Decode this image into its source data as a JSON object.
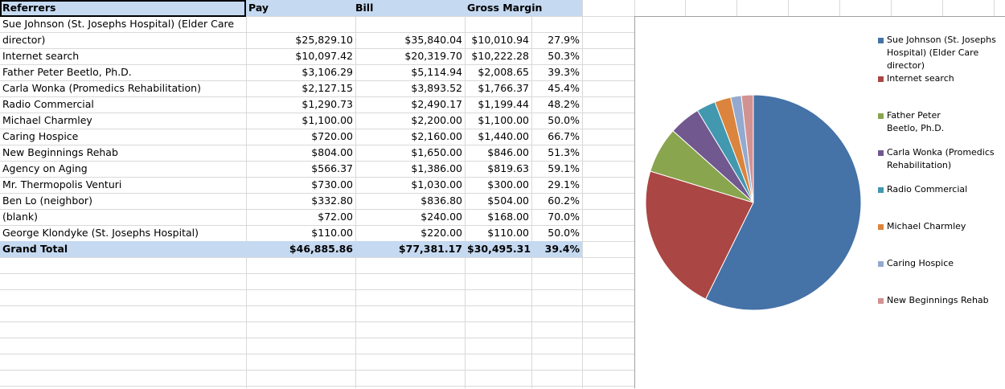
{
  "header": {
    "referrers": "Referrers",
    "pay": "Pay",
    "bill": "Bill",
    "gross_margin": "Gross Margin"
  },
  "rows": [
    {
      "name_line1": "Sue Johnson (St. Josephs Hospital) (Elder Care",
      "name": "director)",
      "pay": "$25,829.10",
      "bill": "$35,840.04",
      "gm": "$10,010.94",
      "pct": "27.9%"
    },
    {
      "name": "Internet search",
      "pay": "$10,097.42",
      "bill": "$20,319.70",
      "gm": "$10,222.28",
      "pct": "50.3%"
    },
    {
      "name": "Father Peter Beetlo, Ph.D.",
      "pay": "$3,106.29",
      "bill": "$5,114.94",
      "gm": "$2,008.65",
      "pct": "39.3%"
    },
    {
      "name": "Carla Wonka (Promedics Rehabilitation)",
      "pay": "$2,127.15",
      "bill": "$3,893.52",
      "gm": "$1,766.37",
      "pct": "45.4%"
    },
    {
      "name": "Radio Commercial",
      "pay": "$1,290.73",
      "bill": "$2,490.17",
      "gm": "$1,199.44",
      "pct": "48.2%"
    },
    {
      "name": "Michael Charmley",
      "pay": "$1,100.00",
      "bill": "$2,200.00",
      "gm": "$1,100.00",
      "pct": "50.0%"
    },
    {
      "name": "Caring Hospice",
      "pay": "$720.00",
      "bill": "$2,160.00",
      "gm": "$1,440.00",
      "pct": "66.7%"
    },
    {
      "name": "New Beginnings Rehab",
      "pay": "$804.00",
      "bill": "$1,650.00",
      "gm": "$846.00",
      "pct": "51.3%"
    },
    {
      "name": "Agency on Aging",
      "pay": "$566.37",
      "bill": "$1,386.00",
      "gm": "$819.63",
      "pct": "59.1%"
    },
    {
      "name": "Mr. Thermopolis Venturi",
      "pay": "$730.00",
      "bill": "$1,030.00",
      "gm": "$300.00",
      "pct": "29.1%"
    },
    {
      "name": "Ben Lo (neighbor)",
      "pay": "$332.80",
      "bill": "$836.80",
      "gm": "$504.00",
      "pct": "60.2%"
    },
    {
      "name": "(blank)",
      "pay": "$72.00",
      "bill": "$240.00",
      "gm": "$168.00",
      "pct": "70.0%"
    },
    {
      "name": "George Klondyke (St. Josephs Hospital)",
      "pay": "$110.00",
      "bill": "$220.00",
      "gm": "$110.00",
      "pct": "50.0%"
    }
  ],
  "total": {
    "name": "Grand Total",
    "pay": "$46,885.86",
    "bill": "$77,381.17",
    "gm": "$30,495.31",
    "pct": "39.4%"
  },
  "colors": {
    "header_fill": "#c5d9f1",
    "gridline": "#d9d9d9"
  },
  "chart_data": {
    "type": "pie",
    "series_column": "Pay",
    "slices": [
      {
        "label": "Sue Johnson (St. Josephs Hospital) (Elder Care director)",
        "legend_lines": [
          "Sue Johnson (St. Josephs",
          "Hospital) (Elder Care",
          "director)"
        ],
        "value": 25829.1,
        "color": "#4572a7"
      },
      {
        "label": "Internet search",
        "legend_lines": [
          "Internet search"
        ],
        "value": 10097.42,
        "color": "#aa4643"
      },
      {
        "label": "Father Peter Beetlo, Ph.D.",
        "legend_lines": [
          "Father Peter",
          "Beetlo, Ph.D."
        ],
        "value": 3106.29,
        "color": "#89a54e"
      },
      {
        "label": "Carla Wonka (Promedics Rehabilitation)",
        "legend_lines": [
          "Carla Wonka (Promedics",
          "Rehabilitation)"
        ],
        "value": 2127.15,
        "color": "#71588f"
      },
      {
        "label": "Radio Commercial",
        "legend_lines": [
          "Radio Commercial"
        ],
        "value": 1290.73,
        "color": "#4198af"
      },
      {
        "label": "Michael Charmley",
        "legend_lines": [
          "Michael Charmley"
        ],
        "value": 1100.0,
        "color": "#db843d"
      },
      {
        "label": "Caring Hospice",
        "legend_lines": [
          "Caring Hospice"
        ],
        "value": 720.0,
        "color": "#93a9cf"
      },
      {
        "label": "New Beginnings Rehab",
        "legend_lines": [
          "New Beginnings Rehab"
        ],
        "value": 804.0,
        "color": "#d19392"
      }
    ],
    "legend_placement": "right"
  }
}
